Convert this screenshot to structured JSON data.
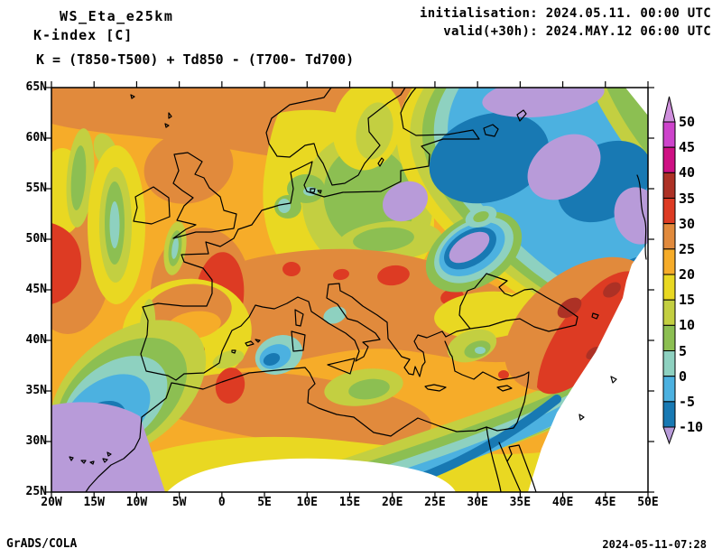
{
  "header": {
    "model_title": "WS_Eta_e25km",
    "parameter_title": "K-index [C]",
    "formula": "K = (T850-T500) + Td850 - (T700- Td700)",
    "initialisation": "initialisation: 2024.05.11. 00:00 UTC",
    "valid": "valid(+30h): 2024.MAY.12 06:00 UTC"
  },
  "footer": {
    "left": "GrADS/COLA",
    "right": "2024-05-11-07:28"
  },
  "axes": {
    "lat_labels": [
      "65N",
      "60N",
      "55N",
      "50N",
      "45N",
      "40N",
      "35N",
      "30N",
      "25N"
    ],
    "lon_labels": [
      "20W",
      "15W",
      "10W",
      "5W",
      "0",
      "5E",
      "10E",
      "15E",
      "20E",
      "25E",
      "30E",
      "35E",
      "40E",
      "45E",
      "50E"
    ]
  },
  "colorbar": {
    "tick_labels": [
      "50",
      "45",
      "40",
      "35",
      "30",
      "25",
      "20",
      "15",
      "10",
      "5",
      "0",
      "-5",
      "-10"
    ],
    "segment_order_top_to_bottom": [
      "p_45_50",
      "p_40_45",
      "p_35_40",
      "p_30_35",
      "p_25_30",
      "p_20_25",
      "p_15_20",
      "p_10_15",
      "p_5_10",
      "p_0_5",
      "p_m5_0",
      "p_m10_m5"
    ],
    "palette": {
      "p_gt_50": "#cf8fdc",
      "p_45_50": "#cd43cb",
      "p_40_45": "#ce1083",
      "p_35_40": "#ad3125",
      "p_30_35": "#dd3b23",
      "p_25_30": "#e18a3c",
      "p_20_25": "#f6ac29",
      "p_15_20": "#e9d822",
      "p_10_15": "#c3cf41",
      "p_5_10": "#8cbf52",
      "p_0_5": "#8ed1c0",
      "p_m5_0": "#4cb1e0",
      "p_m10_m5": "#1879b3",
      "p_lt_m10": "#b89bd9"
    }
  },
  "map_data": {
    "type": "filled-contour-map",
    "variable": "K-index [C]",
    "extent": {
      "lon_min_deg": -20,
      "lon_max_deg": 50,
      "lat_min_deg": 25,
      "lat_max_deg": 65
    },
    "contour_levels_c": [
      -10,
      -5,
      0,
      5,
      10,
      15,
      20,
      25,
      30,
      35,
      40,
      45,
      50
    ],
    "notable_features": [
      "K > 30 C cores over western France, central Spain, northern Morocco, northern Italy, the Pannonian basin, Romania and a large band over eastern Turkey / Caucasus (locally > 35 C)",
      "K < -10 C (lavender) patches over the Baltic, NW Russia, a tongue over Ukraine, off the Canary Islands and a small sliver near the Egyptian coast",
      "Large cold pool (K < 0 C) covering Fennoscandia, the Baltic and western Russia",
      "White regions are outside the model domain: southern boundary arc over North Africa, the south-east corner and the top-right corner"
    ]
  }
}
